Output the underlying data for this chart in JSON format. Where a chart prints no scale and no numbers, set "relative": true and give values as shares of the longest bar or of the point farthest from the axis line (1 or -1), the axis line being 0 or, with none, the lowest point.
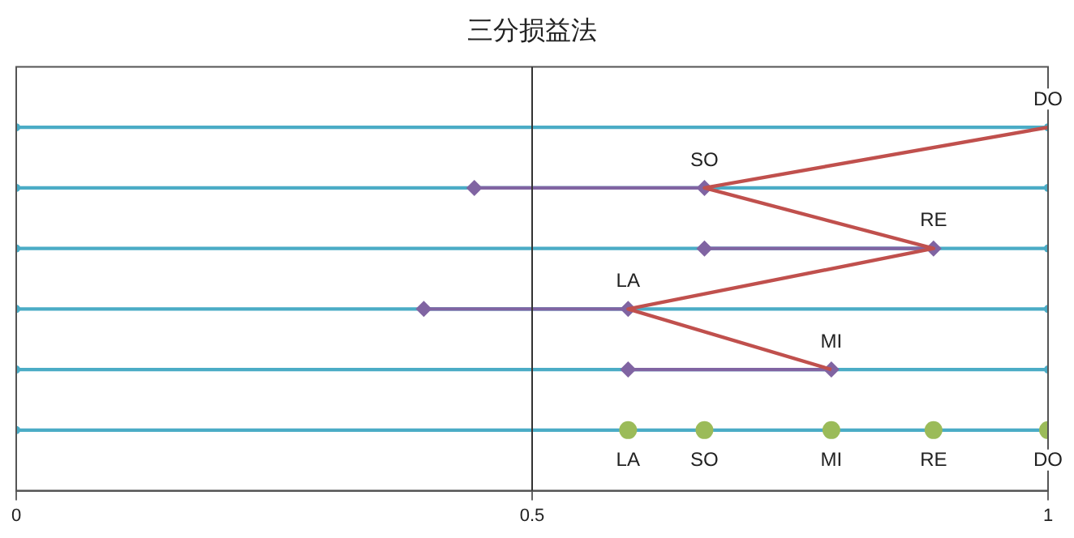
{
  "chart_data": {
    "type": "line",
    "title": "三分损益法",
    "xlim": [
      0,
      1
    ],
    "relative": true,
    "xticks": [
      0,
      0.5,
      1
    ],
    "tick_labels": "x",
    "legend": false,
    "ref_lines": [
      {
        "axis": "x",
        "value": 0.5,
        "color": "#333333"
      }
    ],
    "series": [
      {
        "type": "line",
        "color": "#4bacc6",
        "marker": "circle",
        "x": [
          0,
          1
        ],
        "values": [
          0,
          0
        ]
      },
      {
        "type": "line",
        "color": "#4bacc6",
        "marker": "circle",
        "x": [
          0,
          1
        ],
        "values": [
          0.2,
          0.2
        ]
      },
      {
        "type": "line",
        "color": "#4bacc6",
        "marker": "circle",
        "x": [
          0,
          1
        ],
        "values": [
          0.4,
          0.4
        ]
      },
      {
        "type": "line",
        "color": "#4bacc6",
        "marker": "circle",
        "x": [
          0,
          1
        ],
        "values": [
          0.6,
          0.6
        ]
      },
      {
        "type": "line",
        "color": "#4bacc6",
        "marker": "circle",
        "x": [
          0,
          1
        ],
        "values": [
          0.8,
          0.8
        ]
      },
      {
        "type": "line",
        "color": "#4bacc6",
        "marker": "circle",
        "x": [
          0,
          1
        ],
        "values": [
          1,
          1
        ]
      },
      {
        "type": "line",
        "color": "#8064a2",
        "marker": "diamond",
        "x": [
          0.593,
          0.79
        ],
        "values": [
          0.2,
          0.2
        ]
      },
      {
        "type": "line",
        "color": "#8064a2",
        "marker": "diamond",
        "x": [
          0.395,
          0.593
        ],
        "values": [
          0.4,
          0.4
        ]
      },
      {
        "type": "line",
        "color": "#8064a2",
        "marker": "diamond",
        "x": [
          0.667,
          0.889
        ],
        "values": [
          0.6,
          0.6
        ]
      },
      {
        "type": "line",
        "color": "#8064a2",
        "marker": "diamond",
        "x": [
          0.444,
          0.667
        ],
        "values": [
          0.8,
          0.8
        ]
      },
      {
        "type": "line",
        "color": "#c0504d",
        "marker": "none",
        "x": [
          1,
          0.667,
          0.889,
          0.593,
          0.79
        ],
        "values": [
          1,
          0.8,
          0.6,
          0.4,
          0.2
        ]
      },
      {
        "type": "scatter",
        "color": "#9bbb59",
        "marker": "circle",
        "x": [
          0.593,
          0.667,
          0.79,
          0.889,
          1
        ],
        "values": [
          0,
          0,
          0,
          0,
          0
        ]
      }
    ],
    "annotations": [
      {
        "text": "DO",
        "x": 1,
        "y": 1
      },
      {
        "text": "SO",
        "x": 0.667,
        "y": 0.8
      },
      {
        "text": "RE",
        "x": 0.889,
        "y": 0.6
      },
      {
        "text": "LA",
        "x": 0.593,
        "y": 0.4
      },
      {
        "text": "MI",
        "x": 0.79,
        "y": 0.2
      },
      {
        "text": "LA",
        "x": 0.593,
        "y": 0
      },
      {
        "text": "SO",
        "x": 0.667,
        "y": 0
      },
      {
        "text": "MI",
        "x": 0.79,
        "y": 0
      },
      {
        "text": "RE",
        "x": 0.889,
        "y": 0
      },
      {
        "text": "DO",
        "x": 1,
        "y": 0
      }
    ]
  }
}
